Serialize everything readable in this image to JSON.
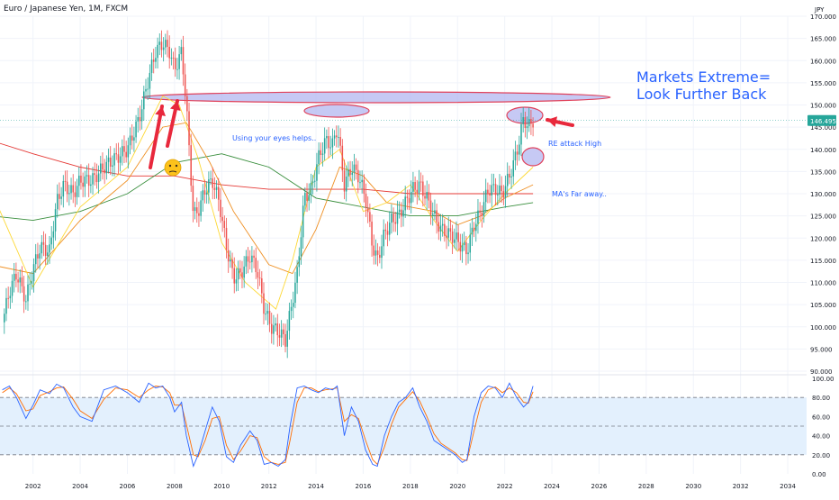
{
  "header": {
    "title": "Euro / Japanese Yen, 1M, FXCM"
  },
  "chart_data": {
    "type": "line",
    "currency_label": "JPY",
    "last_price": 146.495,
    "last_price_label": "146.495",
    "price_axis": {
      "ylim": [
        90,
        170
      ],
      "ticks": [
        "170.000",
        "165.000",
        "160.000",
        "155.000",
        "150.000",
        "145.000",
        "140.000",
        "135.000",
        "130.000",
        "125.000",
        "120.000",
        "115.000",
        "110.000",
        "105.000",
        "100.000",
        "95.000",
        "90.000"
      ]
    },
    "x_axis": {
      "xlim": [
        2000.6,
        2034.8
      ],
      "ticks": [
        "2002",
        "2004",
        "2006",
        "2008",
        "2010",
        "2012",
        "2014",
        "2016",
        "2018",
        "2020",
        "2022",
        "2024",
        "2026",
        "2028",
        "2030",
        "2032",
        "2034"
      ]
    },
    "price_series": {
      "name": "EUR/JPY",
      "x": [
        2000.7,
        2001.0,
        2001.3,
        2001.7,
        2002.0,
        2002.3,
        2002.7,
        2003.0,
        2003.3,
        2003.7,
        2004.0,
        2004.5,
        2005.0,
        2005.5,
        2006.0,
        2006.5,
        2006.9,
        2007.2,
        2007.5,
        2007.8,
        2008.0,
        2008.3,
        2008.5,
        2008.8,
        2009.0,
        2009.3,
        2009.6,
        2009.9,
        2010.2,
        2010.5,
        2010.8,
        2011.2,
        2011.5,
        2011.8,
        2012.1,
        2012.4,
        2012.7,
        2012.9,
        2013.2,
        2013.5,
        2013.8,
        2014.1,
        2014.4,
        2014.7,
        2014.9,
        2015.2,
        2015.5,
        2015.8,
        2016.1,
        2016.4,
        2016.6,
        2016.9,
        2017.2,
        2017.5,
        2017.8,
        2018.1,
        2018.4,
        2018.7,
        2019.0,
        2019.3,
        2019.6,
        2019.9,
        2020.2,
        2020.4,
        2020.7,
        2021.0,
        2021.3,
        2021.6,
        2021.9,
        2022.2,
        2022.5,
        2022.8,
        2023.0,
        2023.2
      ],
      "y": [
        101,
        108,
        112,
        106,
        113,
        118,
        117,
        128,
        132,
        130,
        133,
        133,
        136,
        138,
        140,
        147,
        156,
        162,
        164,
        162,
        158,
        162,
        150,
        125,
        126,
        131,
        133,
        128,
        118,
        111,
        112,
        116,
        113,
        104,
        100,
        99,
        97,
        103,
        112,
        129,
        131,
        138,
        142,
        141,
        145,
        132,
        136,
        134,
        129,
        118,
        115,
        121,
        124,
        125,
        128,
        131,
        132,
        129,
        125,
        122,
        121,
        120,
        118,
        117,
        123,
        126,
        131,
        131,
        130,
        134,
        139,
        147,
        145,
        146.5
      ]
    },
    "ma_series": [
      {
        "name": "",
        "color": "#e53935",
        "x": [
          2000.2,
          2002,
          2004,
          2006,
          2008,
          2010,
          2012,
          2014,
          2016,
          2018,
          2020,
          2022,
          2023.2
        ],
        "y": [
          142,
          139,
          136,
          134,
          134,
          132,
          131,
          131,
          131,
          130,
          130,
          130,
          130
        ]
      },
      {
        "name": "",
        "color": "#388e3c",
        "x": [
          2000.2,
          2002,
          2004,
          2006,
          2008,
          2010,
          2012,
          2014,
          2016,
          2018,
          2020,
          2022,
          2023.2
        ],
        "y": [
          125,
          124,
          126,
          130,
          137,
          139,
          136,
          129,
          127,
          125,
          125,
          127,
          128
        ]
      },
      {
        "name": "",
        "color": "#ef8f22",
        "x": [
          2000.2,
          2002,
          2004,
          2006,
          2007.5,
          2008.5,
          2009.5,
          2010.5,
          2012,
          2013,
          2014,
          2015,
          2016,
          2017,
          2018,
          2019,
          2020,
          2021,
          2022,
          2023.2
        ],
        "y": [
          114,
          112,
          124,
          133,
          145,
          146,
          137,
          126,
          114,
          112,
          122,
          136,
          134,
          128,
          127,
          126,
          123,
          125,
          129,
          132
        ]
      },
      {
        "name": "",
        "color": "#fdd835",
        "x": [
          2000.2,
          2002,
          2004,
          2006,
          2007.5,
          2008.2,
          2009,
          2010,
          2011,
          2012.3,
          2013,
          2014,
          2015,
          2016,
          2017,
          2018,
          2019,
          2020,
          2021,
          2022,
          2023.2
        ],
        "y": [
          131,
          109,
          127,
          136,
          152,
          150,
          138,
          119,
          110,
          104,
          115,
          136,
          140,
          126,
          128,
          132,
          124,
          117,
          124,
          130,
          136
        ]
      }
    ],
    "oscillator": {
      "ylim": [
        0,
        100
      ],
      "ticks": [
        "100.00",
        "80.00",
        "60.00",
        "40.00",
        "20.00",
        "0.00"
      ],
      "band": [
        20,
        80
      ],
      "k_color": "#2962ff",
      "d_color": "#ff6d00",
      "k": {
        "x": [
          2000.7,
          2001.0,
          2001.3,
          2001.7,
          2002.0,
          2002.3,
          2002.7,
          2003.0,
          2003.3,
          2003.7,
          2004.0,
          2004.5,
          2005.0,
          2005.5,
          2006.0,
          2006.5,
          2006.9,
          2007.2,
          2007.5,
          2007.8,
          2008.0,
          2008.3,
          2008.5,
          2008.8,
          2009.0,
          2009.3,
          2009.6,
          2009.9,
          2010.2,
          2010.5,
          2010.8,
          2011.2,
          2011.5,
          2011.8,
          2012.1,
          2012.4,
          2012.7,
          2012.9,
          2013.2,
          2013.5,
          2013.8,
          2014.1,
          2014.4,
          2014.7,
          2014.9,
          2015.2,
          2015.5,
          2015.8,
          2016.1,
          2016.4,
          2016.6,
          2016.9,
          2017.2,
          2017.5,
          2017.8,
          2018.1,
          2018.4,
          2018.7,
          2019.0,
          2019.3,
          2019.6,
          2019.9,
          2020.2,
          2020.4,
          2020.7,
          2021.0,
          2021.3,
          2021.6,
          2021.9,
          2022.2,
          2022.5,
          2022.8,
          2023.0,
          2023.2
        ],
        "y": [
          88,
          92,
          80,
          58,
          72,
          88,
          84,
          94,
          90,
          70,
          60,
          55,
          88,
          92,
          85,
          75,
          95,
          90,
          92,
          80,
          65,
          75,
          40,
          8,
          20,
          45,
          70,
          55,
          18,
          12,
          30,
          45,
          35,
          10,
          12,
          8,
          15,
          50,
          90,
          92,
          88,
          85,
          90,
          88,
          92,
          40,
          70,
          55,
          25,
          10,
          8,
          40,
          60,
          75,
          80,
          90,
          70,
          55,
          35,
          30,
          25,
          20,
          12,
          15,
          60,
          85,
          92,
          90,
          80,
          95,
          80,
          70,
          75,
          92
        ]
      },
      "d": {
        "x": [
          2000.7,
          2001.0,
          2001.3,
          2001.7,
          2002.0,
          2002.3,
          2002.7,
          2003.0,
          2003.3,
          2003.7,
          2004.0,
          2004.5,
          2005.0,
          2005.5,
          2006.0,
          2006.5,
          2006.9,
          2007.2,
          2007.5,
          2007.8,
          2008.0,
          2008.3,
          2008.5,
          2008.8,
          2009.0,
          2009.3,
          2009.6,
          2009.9,
          2010.2,
          2010.5,
          2010.8,
          2011.2,
          2011.5,
          2011.8,
          2012.1,
          2012.4,
          2012.7,
          2012.9,
          2013.2,
          2013.5,
          2013.8,
          2014.1,
          2014.4,
          2014.7,
          2014.9,
          2015.2,
          2015.5,
          2015.8,
          2016.1,
          2016.4,
          2016.6,
          2016.9,
          2017.2,
          2017.5,
          2017.8,
          2018.1,
          2018.4,
          2018.7,
          2019.0,
          2019.3,
          2019.6,
          2019.9,
          2020.2,
          2020.4,
          2020.7,
          2021.0,
          2021.3,
          2021.6,
          2021.9,
          2022.2,
          2022.5,
          2022.8,
          2023.0,
          2023.2
        ],
        "y": [
          85,
          90,
          84,
          66,
          68,
          82,
          86,
          90,
          91,
          78,
          66,
          58,
          78,
          90,
          88,
          80,
          88,
          92,
          91,
          85,
          72,
          72,
          52,
          20,
          18,
          35,
          58,
          60,
          30,
          15,
          24,
          40,
          38,
          18,
          12,
          10,
          12,
          35,
          75,
          90,
          90,
          86,
          88,
          89,
          90,
          55,
          62,
          58,
          35,
          15,
          10,
          28,
          52,
          70,
          78,
          86,
          76,
          60,
          42,
          32,
          27,
          22,
          15,
          14,
          45,
          75,
          88,
          91,
          85,
          90,
          85,
          75,
          74,
          86
        ]
      }
    },
    "annotations": {
      "headline_line1": "Markets Extreme=",
      "headline_line2": "Look Further Back",
      "note_eyes": "Using your eyes helps..",
      "note_high": "RE attack High",
      "note_ma": "MA's Far away.."
    }
  },
  "colors": {
    "bull": "#26a69a",
    "bear": "#ef5350",
    "price_label_bg": "#26a69a",
    "annotation_blue": "#2962ff",
    "arrow_red": "#e8283c",
    "ellipse_fill": "#b3b7f0",
    "ellipse_stroke": "#e0405a",
    "band_fill": "#e3f0fd"
  }
}
